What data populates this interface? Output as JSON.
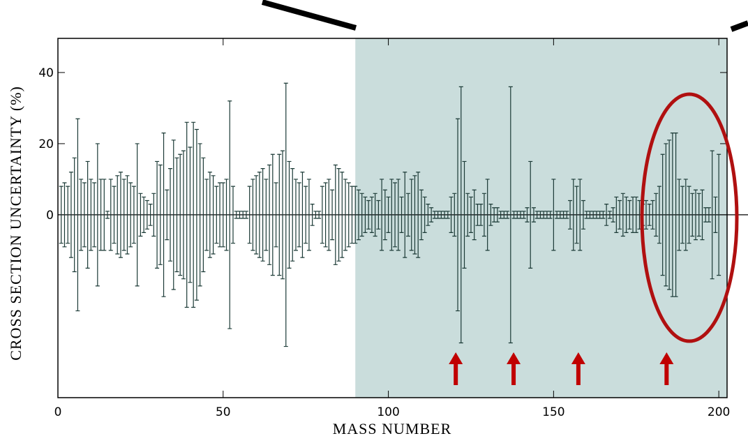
{
  "chart_data": {
    "type": "errorbar",
    "x_label": "MASS NUMBER",
    "y_label": "CROSS SECTION UNCERTAINTY  (%)",
    "xlim": [
      0,
      202.5
    ],
    "ylim": [
      -51.4,
      49.6
    ],
    "xticks": [
      0,
      50,
      100,
      150,
      200
    ],
    "yticks": [
      0,
      20,
      40
    ],
    "highlight_x": [
      90,
      202.5
    ],
    "highlight_color": "#cadddc",
    "arrow_x": [
      120.4,
      137.9,
      157.5,
      184.2
    ],
    "arrow_color": "#c00000",
    "color": "#1b3a36",
    "x": [
      1,
      2,
      3,
      4,
      5,
      6,
      7,
      8,
      9,
      10,
      11,
      12,
      13,
      14,
      15,
      16,
      17,
      18,
      19,
      20,
      21,
      22,
      23,
      24,
      25,
      26,
      27,
      28,
      29,
      30,
      31,
      32,
      33,
      34,
      35,
      36,
      37,
      38,
      39,
      40,
      41,
      42,
      43,
      44,
      45,
      46,
      47,
      48,
      49,
      50,
      51,
      52,
      53,
      54,
      55,
      56,
      57,
      58,
      59,
      60,
      61,
      62,
      63,
      64,
      65,
      66,
      67,
      68,
      69,
      70,
      71,
      72,
      73,
      74,
      75,
      76,
      77,
      78,
      79,
      80,
      81,
      82,
      83,
      84,
      85,
      86,
      87,
      88,
      89,
      90,
      91,
      92,
      93,
      94,
      95,
      96,
      97,
      98,
      99,
      100,
      101,
      102,
      103,
      104,
      105,
      106,
      107,
      108,
      109,
      110,
      111,
      112,
      113,
      114,
      115,
      116,
      117,
      118,
      119,
      120,
      121,
      122,
      123,
      124,
      125,
      126,
      127,
      128,
      129,
      130,
      131,
      132,
      133,
      134,
      135,
      136,
      137,
      138,
      139,
      140,
      141,
      142,
      143,
      144,
      145,
      146,
      147,
      148,
      149,
      150,
      151,
      152,
      153,
      154,
      155,
      156,
      157,
      158,
      159,
      160,
      161,
      162,
      163,
      164,
      165,
      166,
      167,
      168,
      169,
      170,
      171,
      172,
      173,
      174,
      175,
      176,
      177,
      178,
      179,
      180,
      181,
      182,
      183,
      184,
      185,
      186,
      187,
      188,
      189,
      190,
      191,
      192,
      193,
      194,
      195,
      196,
      197,
      198,
      199,
      200
    ],
    "values": [
      8,
      9,
      8,
      12,
      16,
      27,
      10,
      9,
      15,
      10,
      9,
      20,
      10,
      10,
      1,
      10,
      8,
      11,
      12,
      10,
      11,
      9,
      8,
      20,
      6,
      5,
      4,
      3,
      6,
      15,
      14,
      23,
      7,
      13,
      21,
      16,
      17,
      18,
      26,
      19,
      26,
      24,
      20,
      16,
      10,
      12,
      11,
      8,
      9,
      9,
      10,
      32,
      8,
      1,
      1,
      1,
      1,
      8,
      10,
      11,
      12,
      13,
      10,
      14,
      17,
      9,
      17,
      18,
      37,
      15,
      13,
      10,
      9,
      12,
      8,
      10,
      3,
      1,
      1,
      8,
      9,
      10,
      7,
      14,
      13,
      12,
      10,
      9,
      8,
      8,
      7,
      6,
      5,
      4,
      5,
      6,
      4,
      10,
      7,
      5,
      10,
      9,
      10,
      5,
      12,
      6,
      10,
      11,
      12,
      7,
      5,
      3,
      2,
      1,
      1,
      1,
      1,
      1,
      5,
      6,
      27,
      36,
      15,
      6,
      5,
      7,
      3,
      3,
      6,
      10,
      3,
      2,
      2,
      1,
      1,
      1,
      36,
      1,
      1,
      1,
      1,
      2,
      15,
      2,
      1,
      1,
      1,
      1,
      1,
      10,
      1,
      1,
      1,
      1,
      4,
      10,
      8,
      10,
      4,
      1,
      1,
      1,
      1,
      1,
      1,
      3,
      1,
      2,
      5,
      4,
      6,
      5,
      4,
      5,
      5,
      4,
      3,
      4,
      3,
      4,
      6,
      8,
      17,
      20,
      21,
      23,
      23,
      10,
      8,
      10,
      8,
      6,
      7,
      6,
      7,
      2,
      2,
      18,
      5,
      17
    ]
  }
}
